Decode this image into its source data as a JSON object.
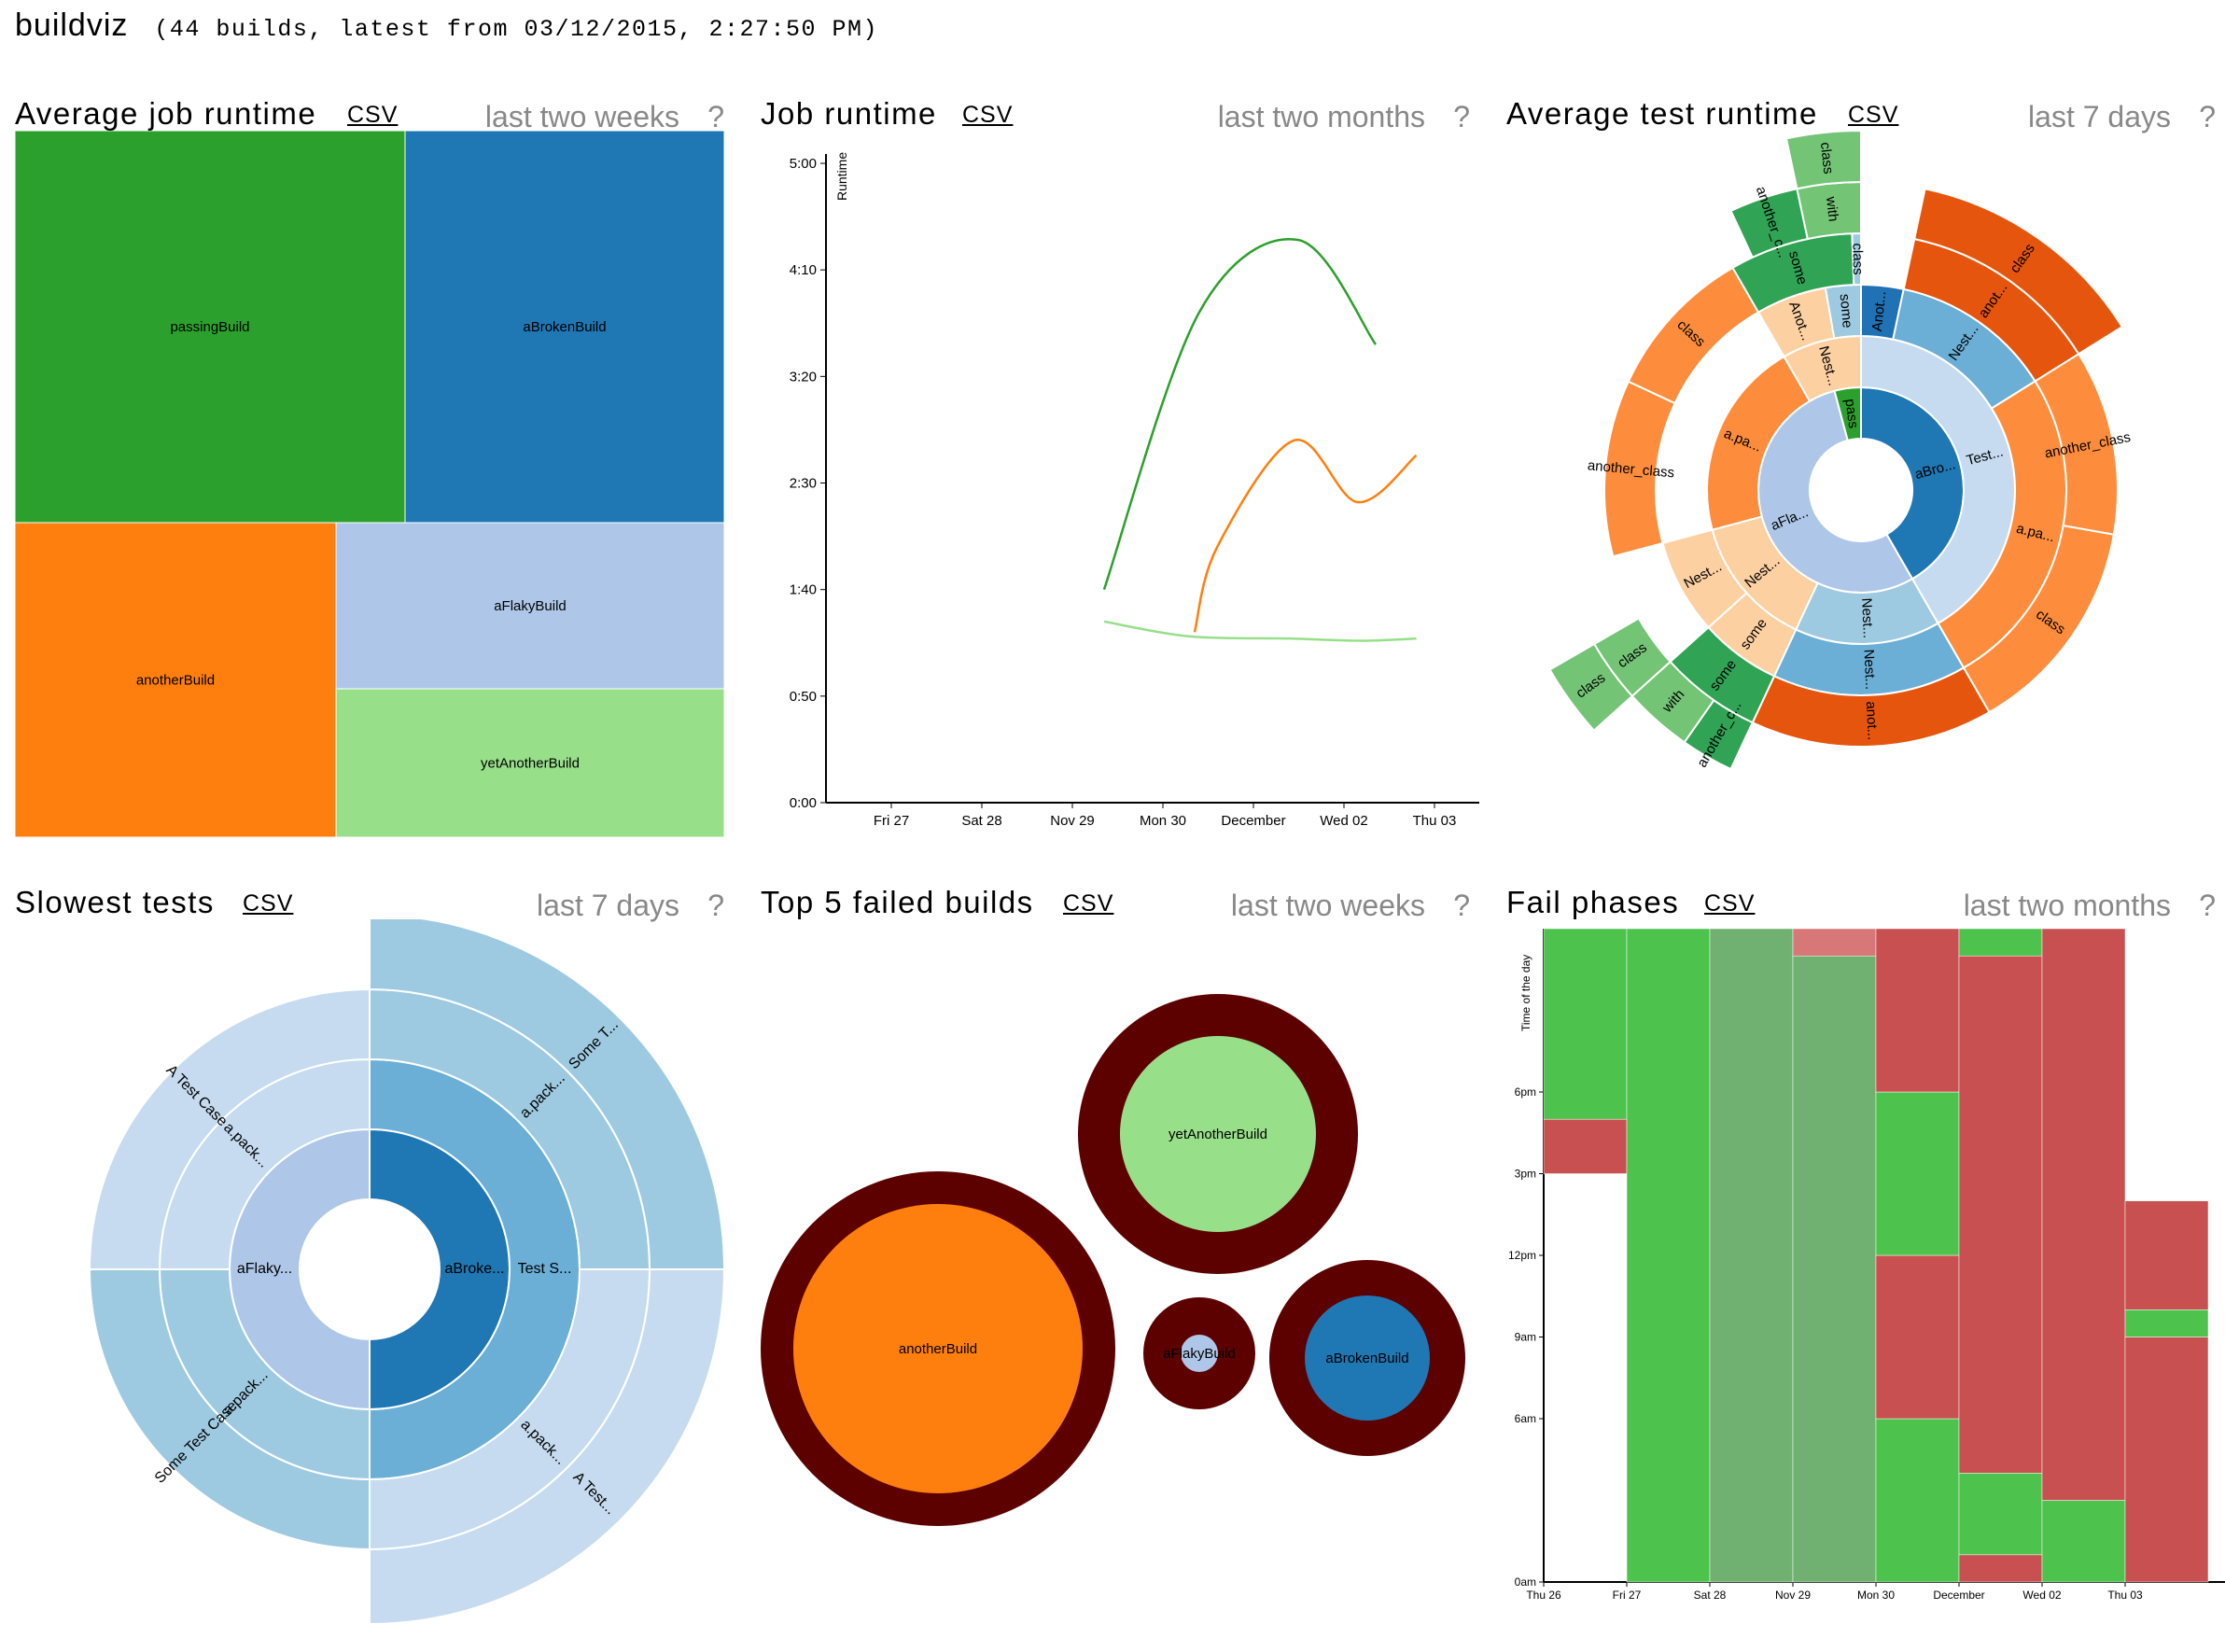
{
  "header": {
    "title": "buildviz",
    "subtitle": "(44 builds, latest from 03/12/2015, 2:27:50 PM)"
  },
  "common": {
    "csv_label": "CSV",
    "help_label": "?"
  },
  "panels": {
    "avg_job_runtime": {
      "title": "Average job runtime",
      "range": "last two weeks"
    },
    "job_runtime": {
      "title": "Job runtime",
      "range": "last two months"
    },
    "avg_test_runtime": {
      "title": "Average test runtime",
      "range": "last 7 days"
    },
    "slowest_tests": {
      "title": "Slowest tests",
      "range": "last 7 days"
    },
    "top_failed": {
      "title": "Top 5 failed builds",
      "range": "last two weeks"
    },
    "fail_phases": {
      "title": "Fail phases",
      "range": "last two months"
    }
  },
  "chart_data": [
    {
      "id": "avg_job_runtime",
      "type": "treemap",
      "items": [
        {
          "name": "passingBuild",
          "color": "#2ca02c"
        },
        {
          "name": "aBrokenBuild",
          "color": "#1f77b4"
        },
        {
          "name": "anotherBuild",
          "color": "#ff7f0e"
        },
        {
          "name": "aFlakyBuild",
          "color": "#aec7e8"
        },
        {
          "name": "yetAnotherBuild",
          "color": "#98df8a"
        }
      ]
    },
    {
      "id": "job_runtime",
      "type": "line",
      "ylabel": "Runtime",
      "y_ticks": [
        "0:00",
        "0:50",
        "1:40",
        "2:30",
        "3:20",
        "4:10",
        "5:00"
      ],
      "ylim": [
        0,
        300
      ],
      "x_ticks": [
        "Fri 27",
        "Sat 28",
        "Nov 29",
        "Mon 30",
        "December",
        "Wed 02",
        "Thu 03"
      ],
      "series": [
        {
          "color": "#2ca02c",
          "points": [
            [
              2.35,
              100
            ],
            [
              3.4,
              230
            ],
            [
              4.5,
              264
            ],
            [
              5.35,
              215
            ]
          ]
        },
        {
          "color": "#ff7f0e",
          "points": [
            [
              3.35,
              80
            ],
            [
              3.6,
              120
            ],
            [
              4.45,
              170
            ],
            [
              5.15,
              141
            ],
            [
              5.8,
              163
            ]
          ]
        },
        {
          "color": "#98df8a",
          "points": [
            [
              2.35,
              85
            ],
            [
              3.3,
              78
            ],
            [
              4.4,
              77
            ],
            [
              5.2,
              76
            ],
            [
              5.8,
              77
            ]
          ]
        }
      ]
    },
    {
      "id": "avg_test_runtime",
      "type": "sunburst",
      "labels": {
        "ring1": [
          {
            "t": "aBro...",
            "c": "#1f77b4"
          },
          {
            "t": "aFla...",
            "c": "#aec7e8"
          },
          {
            "t": "pass",
            "c": "#2ca02c"
          }
        ],
        "ring2": [
          "Test...",
          "Nest...",
          "Nest...",
          "a.pa...",
          "Nest..."
        ],
        "ring3": [
          "Anot...",
          "Nest...",
          "a.pa...",
          "Nest...",
          "some",
          "Nest...",
          "Anot...",
          "some"
        ],
        "ring4": [
          "anot...",
          "class",
          "another_class",
          "class",
          "anot...",
          "class",
          "another_class",
          "class",
          "with",
          "class",
          "another_c...",
          "some",
          "with",
          "class"
        ]
      }
    },
    {
      "id": "slowest_tests",
      "type": "sunburst",
      "labels": [
        "aBroke...",
        "Test S...",
        "a.pack...",
        "Some T...",
        "a.pack...",
        "A Test...",
        "aFlaky...",
        "a.pack...",
        "A Test Case",
        "a.pack...",
        "Some Test Case"
      ]
    },
    {
      "id": "top_failed",
      "type": "bubble",
      "items": [
        {
          "name": "anotherBuild",
          "color": "#ff7f0e",
          "failures": "high"
        },
        {
          "name": "yetAnotherBuild",
          "color": "#98df8a",
          "failures": "medium"
        },
        {
          "name": "aFlakyBuild",
          "color": "#aec7e8",
          "failures": "low"
        },
        {
          "name": "aBrokenBuild",
          "color": "#1f77b4",
          "failures": "medium"
        }
      ]
    },
    {
      "id": "fail_phases",
      "type": "heatmap",
      "ylabel": "Time of the day",
      "y_ticks": [
        "0am",
        "6am",
        "9am",
        "12pm",
        "3pm",
        "6pm"
      ],
      "x_ticks": [
        "Thu 26",
        "Fri 27",
        "Sat 28",
        "Nov 29",
        "Mon 30",
        "December",
        "Wed 02",
        "Thu 03"
      ],
      "colors": {
        "pass": "#4dc24d",
        "fail": "#c85050"
      }
    }
  ]
}
